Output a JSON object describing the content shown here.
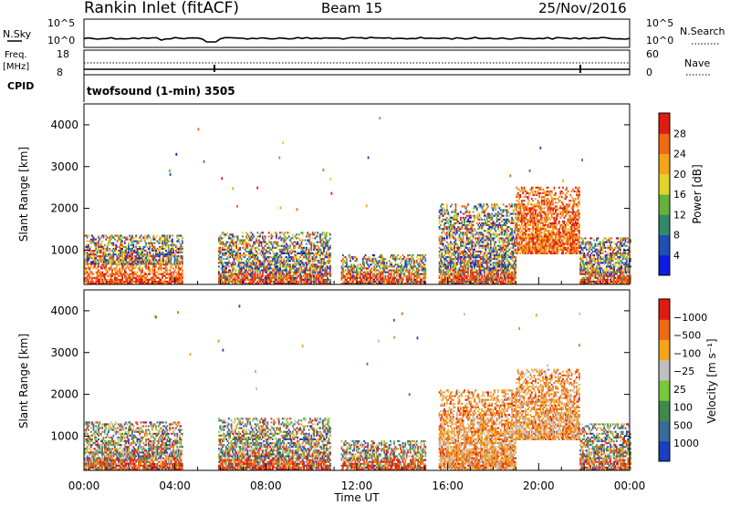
{
  "header": {
    "station": "Rankin Inlet (fitACF)",
    "beam": "Beam 15",
    "date": "25/Nov/2016"
  },
  "noise_panel": {
    "left_label": "N.Sky",
    "right_label": "N.Search",
    "left_ticks": [
      "10^5",
      "10^0"
    ],
    "right_ticks": [
      "10^5",
      "10^0"
    ]
  },
  "freq_panel": {
    "left_label_1": "Freq.",
    "left_label_2": "[MHz]",
    "right_label": "Nave",
    "left_ticks": [
      "18",
      "8"
    ],
    "right_ticks": [
      "60",
      "0"
    ]
  },
  "cpid": {
    "label": "CPID",
    "text": "twofsound (1-min) 3505"
  },
  "xaxis": {
    "label": "Time UT",
    "ticks": [
      "00:00",
      "04:00",
      "08:00",
      "12:00",
      "16:00",
      "20:00",
      "00:00"
    ]
  },
  "chart_data": [
    {
      "type": "heatmap",
      "title": "",
      "xlabel": "",
      "ylabel": "Slant Range [km]",
      "x_range_hours": [
        0,
        24
      ],
      "ylim": [
        180,
        4500
      ],
      "yticks": [
        "1000",
        "2000",
        "3000",
        "4000"
      ],
      "colorbar": {
        "label": "Power [dB]",
        "tick_labels": [
          "4",
          "8",
          "12",
          "16",
          "20",
          "24",
          "28"
        ],
        "colors": [
          "#0a1de0",
          "#1f4fb4",
          "#2f8a6a",
          "#62b33a",
          "#e2d42a",
          "#f5a418",
          "#ef6a10",
          "#e01b12"
        ]
      },
      "scatter_blocks": [
        {
          "t": [
            0.0,
            4.3
          ],
          "range_km": [
            180,
            650
          ],
          "level": "high"
        },
        {
          "t": [
            0.0,
            4.3
          ],
          "range_km": [
            650,
            1350
          ],
          "level": "mixed"
        },
        {
          "t": [
            5.9,
            10.8
          ],
          "range_km": [
            180,
            1400
          ],
          "level": "mixed"
        },
        {
          "t": [
            11.3,
            15.0
          ],
          "range_km": [
            180,
            900
          ],
          "level": "mixed"
        },
        {
          "t": [
            15.6,
            19.0
          ],
          "range_km": [
            180,
            2100
          ],
          "level": "mixed"
        },
        {
          "t": [
            19.0,
            21.8
          ],
          "range_km": [
            900,
            2500
          ],
          "level": "high"
        },
        {
          "t": [
            21.8,
            24.0
          ],
          "range_km": [
            180,
            1300
          ],
          "level": "mixed"
        }
      ]
    },
    {
      "type": "heatmap",
      "title": "",
      "xlabel": "Time UT",
      "ylabel": "Slant Range [km]",
      "x_range_hours": [
        0,
        24
      ],
      "ylim": [
        180,
        4500
      ],
      "yticks": [
        "1000",
        "2000",
        "3000",
        "4000"
      ],
      "colorbar": {
        "label": "Velocity [m s⁻¹]",
        "tick_labels": [
          "1000",
          "500",
          "100",
          "25",
          "−25",
          "−100",
          "−500",
          "−1000"
        ],
        "colors": [
          "#1a3fc0",
          "#3a6a9a",
          "#3f8a4a",
          "#77c83a",
          "#c0c0c0",
          "#f5a418",
          "#ef6a10",
          "#e01b12"
        ]
      },
      "scatter_blocks": [
        {
          "t": [
            0.0,
            4.3
          ],
          "range_km": [
            180,
            1350
          ],
          "level": "mixed"
        },
        {
          "t": [
            5.9,
            10.8
          ],
          "range_km": [
            180,
            1400
          ],
          "level": "mixed"
        },
        {
          "t": [
            11.3,
            15.0
          ],
          "range_km": [
            180,
            900
          ],
          "level": "mixed"
        },
        {
          "t": [
            15.6,
            19.0
          ],
          "range_km": [
            180,
            2100
          ],
          "level": "negative"
        },
        {
          "t": [
            19.0,
            21.8
          ],
          "range_km": [
            900,
            2600
          ],
          "level": "negative"
        },
        {
          "t": [
            21.8,
            24.0
          ],
          "range_km": [
            180,
            1300
          ],
          "level": "mixed"
        }
      ]
    }
  ]
}
